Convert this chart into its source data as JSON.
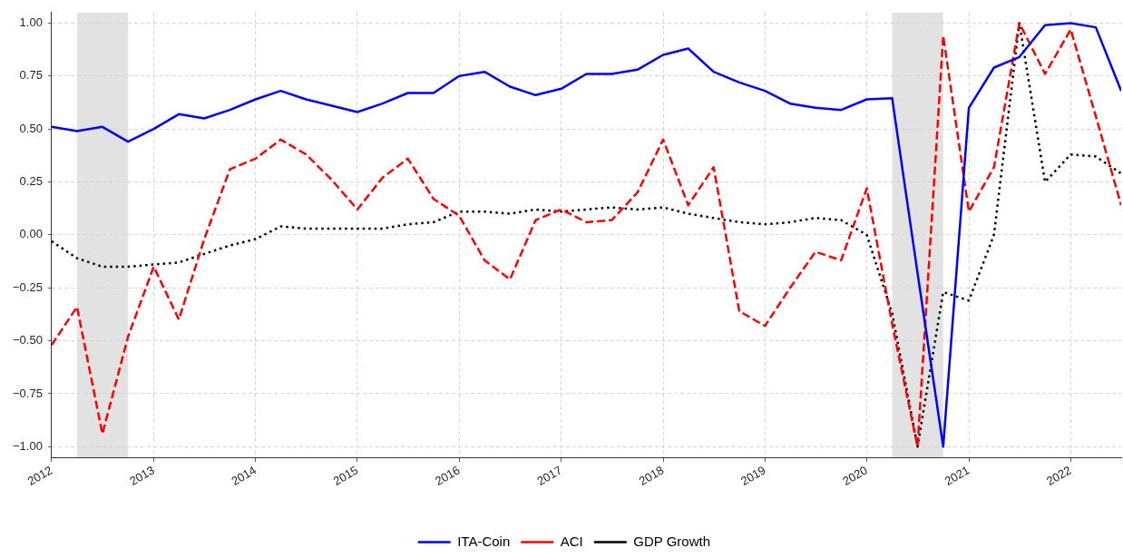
{
  "chart_data": {
    "type": "line",
    "x": [
      "2012-01",
      "2012-04",
      "2012-07",
      "2012-10",
      "2013-01",
      "2013-04",
      "2013-07",
      "2013-10",
      "2014-01",
      "2014-04",
      "2014-07",
      "2014-10",
      "2015-01",
      "2015-04",
      "2015-07",
      "2015-10",
      "2016-01",
      "2016-04",
      "2016-07",
      "2016-10",
      "2017-01",
      "2017-04",
      "2017-07",
      "2017-10",
      "2018-01",
      "2018-04",
      "2018-07",
      "2018-10",
      "2019-01",
      "2019-04",
      "2019-07",
      "2019-10",
      "2020-01",
      "2020-04",
      "2020-07",
      "2020-10",
      "2021-01",
      "2021-04",
      "2021-07",
      "2021-10",
      "2022-01",
      "2022-04",
      "2022-07"
    ],
    "series": [
      {
        "name": "ITA-Coin",
        "color": "#0000ff",
        "line_style": "solid",
        "values": [
          0.51,
          0.49,
          0.51,
          0.44,
          0.5,
          0.57,
          0.55,
          0.59,
          0.64,
          0.68,
          0.64,
          0.61,
          0.58,
          0.62,
          0.67,
          0.67,
          0.75,
          0.77,
          0.7,
          0.66,
          0.69,
          0.76,
          0.76,
          0.78,
          0.85,
          0.88,
          0.77,
          0.72,
          0.68,
          0.62,
          0.6,
          0.59,
          0.64,
          0.645,
          -0.18,
          -1.0,
          0.6,
          0.79,
          0.84,
          0.99,
          1.0,
          0.98,
          0.68
        ]
      },
      {
        "name": "ACI",
        "color": "#ff0000",
        "line_style": "dashed",
        "values": [
          -0.52,
          -0.34,
          -0.94,
          -0.48,
          -0.15,
          -0.4,
          -0.02,
          0.31,
          0.36,
          0.45,
          0.38,
          0.26,
          0.12,
          0.27,
          0.36,
          0.17,
          0.09,
          -0.12,
          -0.21,
          0.07,
          0.12,
          0.06,
          0.07,
          0.2,
          0.45,
          0.14,
          0.32,
          -0.36,
          -0.43,
          -0.25,
          -0.08,
          -0.12,
          0.22,
          -0.42,
          -1.0,
          0.94,
          0.11,
          0.32,
          1.0,
          0.76,
          0.97,
          0.56,
          0.14
        ]
      },
      {
        "name": "GDP Growth",
        "color": "#000000",
        "line_style": "dotted",
        "values": [
          -0.03,
          -0.11,
          -0.15,
          -0.15,
          -0.14,
          -0.13,
          -0.09,
          -0.05,
          -0.02,
          0.04,
          0.03,
          0.03,
          0.03,
          0.03,
          0.05,
          0.06,
          0.11,
          0.11,
          0.1,
          0.12,
          0.11,
          0.12,
          0.13,
          0.12,
          0.13,
          0.1,
          0.08,
          0.06,
          0.05,
          0.06,
          0.08,
          0.07,
          0.0,
          -0.37,
          -1.0,
          -0.27,
          -0.31,
          0.0,
          1.0,
          0.25,
          0.38,
          0.37,
          0.29
        ]
      }
    ],
    "xlim": [
      "2012-01",
      "2022-07"
    ],
    "xticks": [
      "2012",
      "2013",
      "2014",
      "2015",
      "2016",
      "2017",
      "2018",
      "2019",
      "2020",
      "2021",
      "2022"
    ],
    "ylim": [
      -1.05,
      1.05
    ],
    "yticks": [
      {
        "value": -1,
        "label": "−1.00"
      },
      {
        "value": -0.75,
        "label": "−0.75"
      },
      {
        "value": -0.5,
        "label": "−0.50"
      },
      {
        "value": -0.25,
        "label": "−0.25"
      },
      {
        "value": 0,
        "label": "0.00"
      },
      {
        "value": 0.25,
        "label": "0.25"
      },
      {
        "value": 0.5,
        "label": "0.50"
      },
      {
        "value": 0.75,
        "label": "0.75"
      },
      {
        "value": 1,
        "label": "1.00"
      }
    ],
    "bands": [
      {
        "axis": "x",
        "from": "2012-04",
        "to": "2012-10",
        "color": "#e2e2e2"
      },
      {
        "axis": "x",
        "from": "2020-04",
        "to": "2020-10",
        "color": "#e2e2e2"
      }
    ],
    "grid": true,
    "legend": "bottom",
    "marker": "none"
  }
}
